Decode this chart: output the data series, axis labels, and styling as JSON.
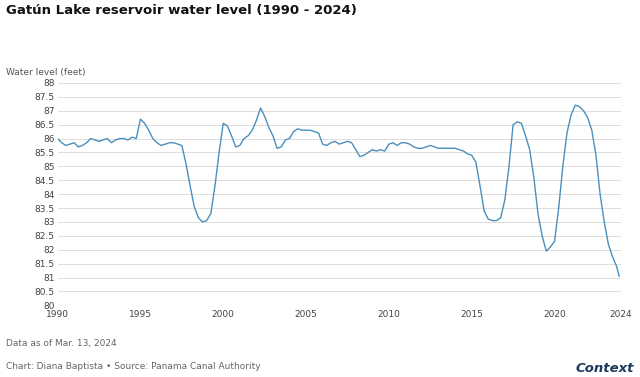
{
  "title": "Gatún Lake reservoir water level (1990 - 2024)",
  "ylabel": "Water level (feet)",
  "footer1": "Data as of Mar. 13, 2024",
  "footer2": "Chart: Diana Baptista • Source: Panama Canal Authority",
  "brand": "Context",
  "line_color": "#4a8fbe",
  "background_color": "#ffffff",
  "ylim": [
    80,
    88
  ],
  "yticks": [
    80,
    80.5,
    81,
    81.5,
    82,
    82.5,
    83,
    83.5,
    84,
    84.5,
    85,
    85.5,
    86,
    86.5,
    87,
    87.5,
    88
  ],
  "xlim": [
    1990,
    2024
  ],
  "xticks": [
    1990,
    1995,
    2000,
    2005,
    2010,
    2015,
    2020,
    2024
  ],
  "data_x": [
    1990.0,
    1990.25,
    1990.5,
    1990.75,
    1991.0,
    1991.25,
    1991.5,
    1991.75,
    1992.0,
    1992.25,
    1992.5,
    1992.75,
    1993.0,
    1993.25,
    1993.5,
    1993.75,
    1994.0,
    1994.25,
    1994.5,
    1994.75,
    1995.0,
    1995.25,
    1995.5,
    1995.75,
    1996.0,
    1996.25,
    1996.5,
    1996.75,
    1997.0,
    1997.25,
    1997.5,
    1997.75,
    1998.0,
    1998.25,
    1998.5,
    1998.75,
    1999.0,
    1999.25,
    1999.5,
    1999.75,
    2000.0,
    2000.25,
    2000.5,
    2000.75,
    2001.0,
    2001.25,
    2001.5,
    2001.75,
    2002.0,
    2002.25,
    2002.5,
    2002.75,
    2003.0,
    2003.25,
    2003.5,
    2003.75,
    2004.0,
    2004.25,
    2004.5,
    2004.75,
    2005.0,
    2005.25,
    2005.5,
    2005.75,
    2006.0,
    2006.25,
    2006.5,
    2006.75,
    2007.0,
    2007.25,
    2007.5,
    2007.75,
    2008.0,
    2008.25,
    2008.5,
    2008.75,
    2009.0,
    2009.25,
    2009.5,
    2009.75,
    2010.0,
    2010.25,
    2010.5,
    2010.75,
    2011.0,
    2011.25,
    2011.5,
    2011.75,
    2012.0,
    2012.25,
    2012.5,
    2012.75,
    2013.0,
    2013.25,
    2013.5,
    2013.75,
    2014.0,
    2014.25,
    2014.5,
    2014.75,
    2015.0,
    2015.25,
    2015.5,
    2015.75,
    2016.0,
    2016.25,
    2016.5,
    2016.75,
    2017.0,
    2017.25,
    2017.5,
    2017.75,
    2018.0,
    2018.25,
    2018.5,
    2018.75,
    2019.0,
    2019.25,
    2019.5,
    2019.75,
    2020.0,
    2020.25,
    2020.5,
    2020.75,
    2021.0,
    2021.25,
    2021.5,
    2021.75,
    2022.0,
    2022.25,
    2022.5,
    2022.75,
    2023.0,
    2023.25,
    2023.5,
    2023.75,
    2023.9
  ],
  "data_y": [
    86.0,
    85.85,
    85.75,
    85.8,
    85.85,
    85.7,
    85.75,
    85.85,
    86.0,
    85.95,
    85.9,
    85.95,
    86.0,
    85.85,
    85.95,
    86.0,
    86.0,
    85.95,
    86.05,
    86.0,
    86.7,
    86.55,
    86.3,
    86.0,
    85.85,
    85.75,
    85.8,
    85.85,
    85.85,
    85.8,
    85.75,
    85.1,
    84.3,
    83.55,
    83.15,
    83.0,
    83.05,
    83.3,
    84.3,
    85.5,
    86.55,
    86.45,
    86.1,
    85.7,
    85.75,
    86.0,
    86.1,
    86.3,
    86.65,
    87.1,
    86.8,
    86.4,
    86.1,
    85.65,
    85.7,
    85.95,
    86.0,
    86.25,
    86.35,
    86.3,
    86.3,
    86.3,
    86.25,
    86.2,
    85.8,
    85.75,
    85.85,
    85.9,
    85.8,
    85.85,
    85.9,
    85.85,
    85.6,
    85.35,
    85.4,
    85.5,
    85.6,
    85.55,
    85.6,
    85.55,
    85.8,
    85.85,
    85.75,
    85.85,
    85.85,
    85.8,
    85.7,
    85.65,
    85.65,
    85.7,
    85.75,
    85.7,
    85.65,
    85.65,
    85.65,
    85.65,
    85.65,
    85.6,
    85.55,
    85.45,
    85.4,
    85.15,
    84.3,
    83.4,
    83.1,
    83.05,
    83.05,
    83.15,
    83.8,
    85.0,
    86.5,
    86.6,
    86.55,
    86.1,
    85.6,
    84.6,
    83.3,
    82.5,
    81.95,
    82.1,
    82.3,
    83.5,
    85.0,
    86.2,
    86.85,
    87.2,
    87.15,
    87.0,
    86.75,
    86.3,
    85.4,
    84.0,
    83.0,
    82.2,
    81.75,
    81.4,
    81.05
  ]
}
